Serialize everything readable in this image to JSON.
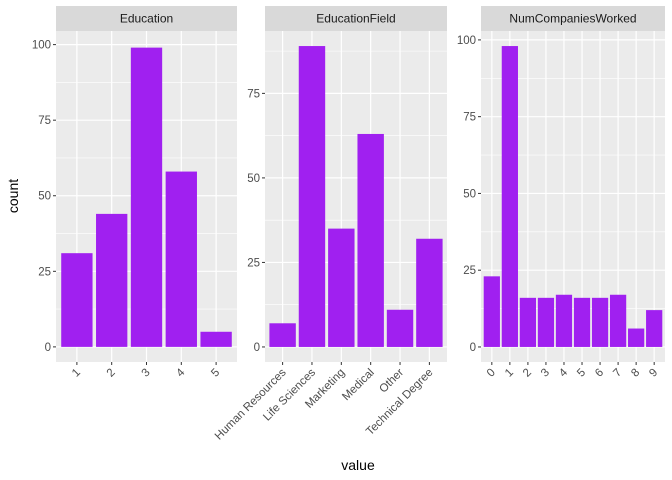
{
  "chart_data": {
    "type": "bar",
    "xlabel": "value",
    "ylabel": "count",
    "bar_color": "#A020F0",
    "panel_background": "#EBEBEB",
    "strip_background": "#D9D9D9",
    "grid": true,
    "facets": [
      {
        "title": "Education",
        "categories": [
          "1",
          "2",
          "3",
          "4",
          "5"
        ],
        "values": [
          31,
          44,
          99,
          58,
          5
        ],
        "ylim": [
          -5,
          104.5
        ],
        "yticks": [
          0,
          25,
          50,
          75,
          100
        ],
        "ytick_labels": [
          "0",
          "25",
          "50",
          "75",
          "100"
        ]
      },
      {
        "title": "EducationField",
        "categories": [
          "Human Resources",
          "Life Sciences",
          "Marketing",
          "Medical",
          "Other",
          "Technical Degree"
        ],
        "values": [
          7,
          89,
          35,
          63,
          11,
          32
        ],
        "ylim": [
          -4.45,
          93.45
        ],
        "yticks": [
          0,
          25,
          50,
          75
        ],
        "ytick_labels": [
          "0",
          "25",
          "50",
          "75"
        ]
      },
      {
        "title": "NumCompaniesWorked",
        "categories": [
          "0",
          "1",
          "2",
          "3",
          "4",
          "5",
          "6",
          "7",
          "8",
          "9"
        ],
        "values": [
          23,
          98,
          16,
          16,
          17,
          16,
          16,
          17,
          6,
          12
        ],
        "ylim": [
          -4.9,
          102.9
        ],
        "yticks": [
          0,
          25,
          50,
          75,
          100
        ],
        "ytick_labels": [
          "0",
          "25",
          "50",
          "75",
          "100"
        ]
      }
    ]
  }
}
